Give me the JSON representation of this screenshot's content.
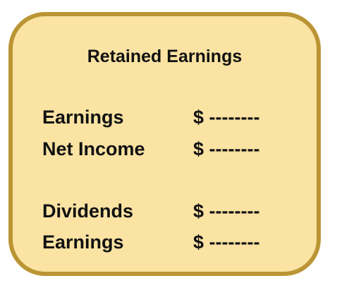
{
  "card": {
    "title": "Retained Earnings",
    "rows": [
      {
        "label": "Earnings",
        "amount": "$ --------"
      },
      {
        "label": "Net Income",
        "amount": "$ --------"
      },
      {
        "label": "Dividends",
        "amount": "$ --------"
      },
      {
        "label": "Earnings",
        "amount": "$ --------"
      }
    ]
  },
  "colors": {
    "background": "#fae3a3",
    "border": "#bb9534",
    "text": "#111111"
  }
}
